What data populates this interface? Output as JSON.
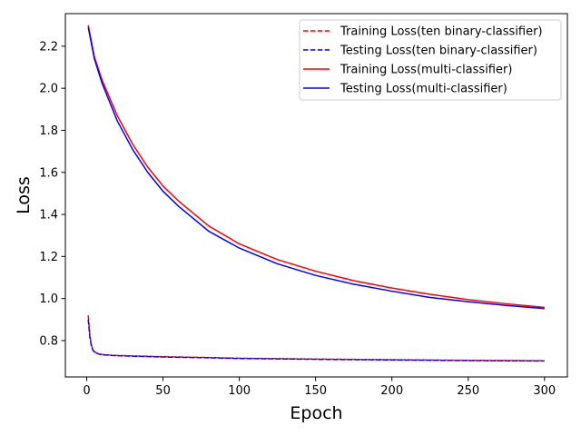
{
  "chart_data": {
    "type": "line",
    "title": "",
    "xlabel": "Epoch",
    "ylabel": "Loss",
    "xlim": [
      -14,
      315
    ],
    "ylim": [
      0.627,
      2.355
    ],
    "xticks": [
      0,
      50,
      100,
      150,
      200,
      250,
      300
    ],
    "yticks": [
      0.8,
      1.0,
      1.2,
      1.4,
      1.6,
      1.8,
      2.0,
      2.2
    ],
    "grid": false,
    "legend_position": "top-right",
    "series": [
      {
        "name": "Training Loss(ten binary-classifier)",
        "color": "#ff0000",
        "style": "dashed",
        "x": [
          1,
          2,
          3,
          4,
          5,
          6,
          8,
          10,
          15,
          20,
          30,
          50,
          75,
          100,
          150,
          200,
          250,
          300
        ],
        "y": [
          0.92,
          0.83,
          0.78,
          0.757,
          0.748,
          0.742,
          0.737,
          0.734,
          0.731,
          0.729,
          0.727,
          0.723,
          0.72,
          0.716,
          0.712,
          0.709,
          0.706,
          0.704
        ]
      },
      {
        "name": "Testing Loss(ten binary-classifier)",
        "color": "#0000ff",
        "style": "dashed",
        "x": [
          1,
          2,
          3,
          4,
          5,
          6,
          8,
          10,
          15,
          20,
          30,
          50,
          75,
          100,
          150,
          200,
          250,
          300
        ],
        "y": [
          0.9,
          0.82,
          0.775,
          0.755,
          0.746,
          0.741,
          0.736,
          0.733,
          0.73,
          0.728,
          0.726,
          0.722,
          0.719,
          0.715,
          0.711,
          0.708,
          0.705,
          0.703
        ]
      },
      {
        "name": "Training Loss(multi-classifier)",
        "color": "#ff0000",
        "style": "solid",
        "x": [
          1,
          5,
          10,
          20,
          30,
          40,
          50,
          60,
          80,
          100,
          125,
          150,
          175,
          200,
          225,
          250,
          275,
          300
        ],
        "y": [
          2.3,
          2.15,
          2.04,
          1.87,
          1.735,
          1.625,
          1.535,
          1.465,
          1.345,
          1.26,
          1.185,
          1.13,
          1.085,
          1.05,
          1.02,
          0.995,
          0.975,
          0.958
        ]
      },
      {
        "name": "Testing Loss(multi-classifier)",
        "color": "#0000ff",
        "style": "solid",
        "x": [
          1,
          5,
          10,
          20,
          30,
          40,
          50,
          60,
          80,
          100,
          125,
          150,
          175,
          200,
          225,
          250,
          275,
          300
        ],
        "y": [
          2.29,
          2.14,
          2.025,
          1.845,
          1.71,
          1.6,
          1.51,
          1.44,
          1.32,
          1.24,
          1.165,
          1.11,
          1.068,
          1.035,
          1.005,
          0.985,
          0.967,
          0.952
        ]
      }
    ]
  }
}
